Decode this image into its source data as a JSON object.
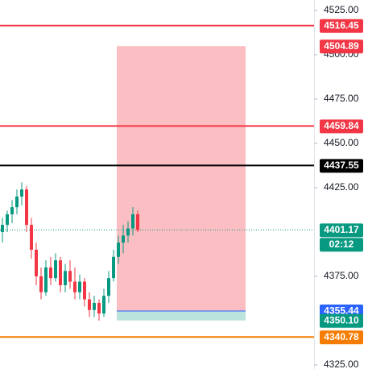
{
  "chart_data": {
    "type": "candlestick",
    "ylim": [
      4322.7,
      4530.9
    ],
    "yticks": [
      {
        "value": 4325,
        "label": "4325.00"
      },
      {
        "value": 4375,
        "label": "4375.00"
      },
      {
        "value": 4425,
        "label": "4425.00"
      },
      {
        "value": 4450,
        "label": "4450.00"
      },
      {
        "value": 4475,
        "label": "4475.00"
      },
      {
        "value": 4500,
        "label": "4500.00"
      },
      {
        "value": 4525,
        "label": "4525.00"
      }
    ],
    "up_color": "#089981",
    "down_color": "#f23645",
    "open": [
      4400,
      4404,
      4410,
      4414,
      4420,
      4424,
      4404,
      4390,
      4375,
      4366,
      4380,
      4374,
      4384,
      4370,
      4378,
      4372,
      4366,
      4372,
      4362,
      4356,
      4360,
      4354,
      4364,
      4374,
      4386,
      4394,
      4398,
      4402,
      4410
    ],
    "high": [
      4408,
      4412,
      4418,
      4424,
      4428,
      4426,
      4408,
      4394,
      4380,
      4384,
      4386,
      4388,
      4386,
      4382,
      4384,
      4380,
      4376,
      4374,
      4366,
      4364,
      4362,
      4368,
      4378,
      4390,
      4398,
      4404,
      4406,
      4414,
      4412
    ],
    "low": [
      4394,
      4400,
      4405,
      4410,
      4415,
      4400,
      4385,
      4370,
      4362,
      4364,
      4370,
      4372,
      4366,
      4366,
      4368,
      4362,
      4362,
      4358,
      4352,
      4352,
      4350,
      4352,
      4360,
      4372,
      4382,
      4388,
      4394,
      4398,
      4400
    ],
    "close": [
      4404,
      4410,
      4414,
      4420,
      4424,
      4404,
      4390,
      4375,
      4366,
      4380,
      4374,
      4384,
      4370,
      4378,
      4372,
      4366,
      4372,
      4362,
      4356,
      4360,
      4354,
      4364,
      4374,
      4386,
      4394,
      4398,
      4402,
      4410,
      4401.17
    ],
    "levels": [
      {
        "value": 4516.45,
        "label": "4516.45",
        "color": "#f23645"
      },
      {
        "value": 4459.84,
        "label": "4459.84",
        "color": "#f23645"
      },
      {
        "value": 4437.55,
        "label": "4437.55",
        "color": "#000000"
      },
      {
        "value": 4340.78,
        "label": "4340.78",
        "color": "#f57c00"
      }
    ],
    "position": {
      "stop": {
        "value": 4504.89,
        "label": "4504.89",
        "color": "#f23645"
      },
      "entry": {
        "value": 4355.44,
        "label": "4355.44",
        "color": "#2962ff"
      },
      "target": {
        "value": 4350.1,
        "label": "4350.10",
        "color": "#089981"
      }
    },
    "current_price": {
      "value": 4401.17,
      "label": "4401.17",
      "countdown": "02:12",
      "color": "#089981"
    }
  }
}
